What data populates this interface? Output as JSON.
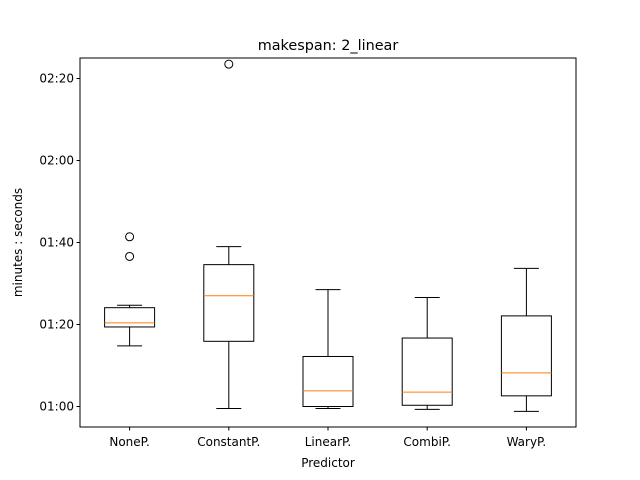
{
  "chart_data": {
    "type": "box",
    "title": "makespan: 2_linear",
    "xlabel": "Predictor",
    "ylabel": "minutes : seconds",
    "y_unit": "seconds",
    "ylim": [
      55,
      145
    ],
    "yticks": [
      {
        "value": 60,
        "label": "01:00"
      },
      {
        "value": 80,
        "label": "01:20"
      },
      {
        "value": 100,
        "label": "01:40"
      },
      {
        "value": 120,
        "label": "02:00"
      },
      {
        "value": 140,
        "label": "02:20"
      }
    ],
    "grid": false,
    "median_color": "#ff7f0e",
    "categories": [
      "NoneP.",
      "ConstantP.",
      "LinearP.",
      "CombiP.",
      "WaryP."
    ],
    "boxes": [
      {
        "name": "NoneP.",
        "whisker_low": 74.8,
        "q1": 79.4,
        "median": 80.4,
        "q3": 84.1,
        "whisker_high": 84.7,
        "outliers": [
          96.6,
          101.4
        ]
      },
      {
        "name": "ConstantP.",
        "whisker_low": 59.5,
        "q1": 75.9,
        "median": 87.0,
        "q3": 94.6,
        "whisker_high": 99.0,
        "outliers": [
          143.5
        ]
      },
      {
        "name": "LinearP.",
        "whisker_low": 59.5,
        "q1": 60.0,
        "median": 63.8,
        "q3": 72.2,
        "whisker_high": 88.5,
        "outliers": []
      },
      {
        "name": "CombiP.",
        "whisker_low": 59.3,
        "q1": 60.3,
        "median": 63.5,
        "q3": 76.7,
        "whisker_high": 86.6,
        "outliers": []
      },
      {
        "name": "WaryP.",
        "whisker_low": 58.8,
        "q1": 62.6,
        "median": 68.2,
        "q3": 82.1,
        "whisker_high": 93.7,
        "outliers": []
      }
    ]
  }
}
